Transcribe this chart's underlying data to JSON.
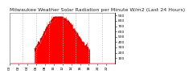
{
  "title": "Milwaukee Weather Solar Radiation per Minute W/m2 (Last 24 Hours)",
  "background_color": "#ffffff",
  "fill_color": "#ff0000",
  "line_color": "#dd0000",
  "grid_color": "#bbbbbb",
  "num_points": 1440,
  "peak_value": 880,
  "y_ticks": [
    100,
    200,
    300,
    400,
    500,
    600,
    700,
    800,
    900
  ],
  "ylim": [
    0,
    950
  ],
  "title_fontsize": 4.5,
  "tick_fontsize": 3.2,
  "seed": 7
}
